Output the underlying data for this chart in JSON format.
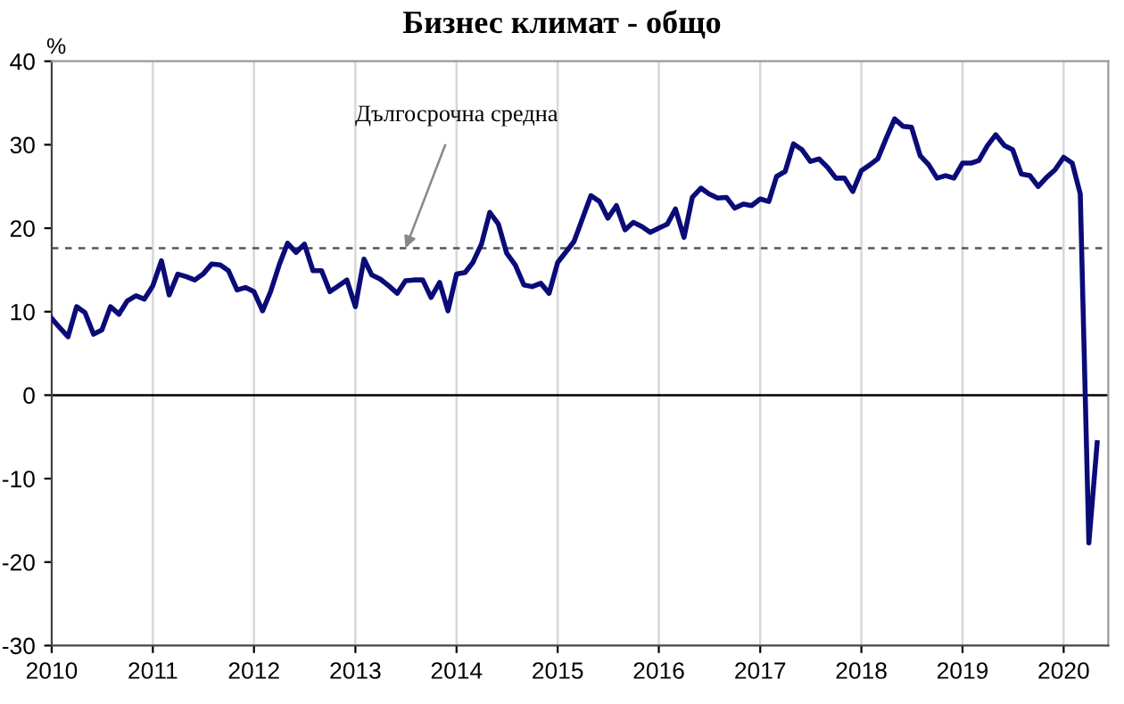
{
  "chart_data": {
    "type": "line",
    "title": "Бизнес климат - общо",
    "ylabel": "%",
    "x": [
      "2010-01",
      "2010-02",
      "2010-03",
      "2010-04",
      "2010-05",
      "2010-06",
      "2010-07",
      "2010-08",
      "2010-09",
      "2010-10",
      "2010-11",
      "2010-12",
      "2011-01",
      "2011-02",
      "2011-03",
      "2011-04",
      "2011-05",
      "2011-06",
      "2011-07",
      "2011-08",
      "2011-09",
      "2011-10",
      "2011-11",
      "2011-12",
      "2012-01",
      "2012-02",
      "2012-03",
      "2012-04",
      "2012-05",
      "2012-06",
      "2012-07",
      "2012-08",
      "2012-09",
      "2012-10",
      "2012-11",
      "2012-12",
      "2013-01",
      "2013-02",
      "2013-03",
      "2013-04",
      "2013-05",
      "2013-06",
      "2013-07",
      "2013-08",
      "2013-09",
      "2013-10",
      "2013-11",
      "2013-12",
      "2014-01",
      "2014-02",
      "2014-03",
      "2014-04",
      "2014-05",
      "2014-06",
      "2014-07",
      "2014-08",
      "2014-09",
      "2014-10",
      "2014-11",
      "2014-12",
      "2015-01",
      "2015-02",
      "2015-03",
      "2015-04",
      "2015-05",
      "2015-06",
      "2015-07",
      "2015-08",
      "2015-09",
      "2015-10",
      "2015-11",
      "2015-12",
      "2016-01",
      "2016-02",
      "2016-03",
      "2016-04",
      "2016-05",
      "2016-06",
      "2016-07",
      "2016-08",
      "2016-09",
      "2016-10",
      "2016-11",
      "2016-12",
      "2017-01",
      "2017-02",
      "2017-03",
      "2017-04",
      "2017-05",
      "2017-06",
      "2017-07",
      "2017-08",
      "2017-09",
      "2017-10",
      "2017-11",
      "2017-12",
      "2018-01",
      "2018-02",
      "2018-03",
      "2018-04",
      "2018-05",
      "2018-06",
      "2018-07",
      "2018-08",
      "2018-09",
      "2018-10",
      "2018-11",
      "2018-12",
      "2019-01",
      "2019-02",
      "2019-03",
      "2019-04",
      "2019-05",
      "2019-06",
      "2019-07",
      "2019-08",
      "2019-09",
      "2019-10",
      "2019-11",
      "2019-12",
      "2020-01",
      "2020-02",
      "2020-03",
      "2020-04",
      "2020-05"
    ],
    "series": [
      {
        "color": "#0b0b78",
        "values": [
          9.2,
          8.0,
          7.0,
          10.6,
          9.9,
          7.3,
          7.8,
          10.6,
          9.7,
          11.3,
          11.9,
          11.5,
          13.1,
          16.1,
          12.0,
          14.5,
          14.2,
          13.8,
          14.5,
          15.7,
          15.6,
          14.9,
          12.6,
          12.9,
          12.4,
          10.1,
          12.4,
          15.6,
          18.2,
          17.1,
          18.1,
          14.9,
          14.9,
          12.4,
          13.1,
          13.8,
          10.6,
          16.3,
          14.4,
          13.9,
          13.1,
          12.2,
          13.7,
          13.8,
          13.8,
          11.7,
          13.5,
          10.1,
          14.5,
          14.7,
          15.9,
          18.1,
          21.9,
          20.5,
          17.0,
          15.6,
          13.2,
          13.0,
          13.4,
          12.2,
          15.9,
          17.2,
          18.4,
          21.2,
          23.9,
          23.2,
          21.2,
          22.7,
          19.8,
          20.7,
          20.2,
          19.5,
          20.0,
          20.5,
          22.3,
          18.9,
          23.7,
          24.8,
          24.1,
          23.6,
          23.7,
          22.4,
          22.9,
          22.7,
          23.5,
          23.2,
          26.2,
          26.8,
          30.1,
          29.4,
          28.0,
          28.3,
          27.3,
          26.0,
          26.0,
          24.4,
          26.9,
          27.6,
          28.3,
          30.8,
          33.1,
          32.2,
          32.1,
          28.7,
          27.6,
          26.0,
          26.3,
          26.0,
          27.8,
          27.8,
          28.1,
          29.9,
          31.2,
          29.9,
          29.4,
          26.5,
          26.3,
          25.0,
          26.1,
          27.0,
          28.5,
          27.8,
          24.1,
          -17.7,
          -5.7
        ]
      }
    ],
    "xlim": [
      "2010-01",
      "2020-06-10"
    ],
    "xticks": [
      "2010",
      "2011",
      "2012",
      "2013",
      "2014",
      "2015",
      "2016",
      "2017",
      "2018",
      "2019",
      "2020"
    ],
    "ylim": [
      -30,
      40
    ],
    "yticks": [
      -30,
      -20,
      -10,
      0,
      10,
      20,
      30,
      40
    ],
    "grid": "x",
    "line_style": "solid",
    "marker": "none",
    "ref_lines": [
      {
        "axis": "y",
        "value": 17.6,
        "color": "#555555",
        "line_style": "dashed"
      },
      {
        "axis": "y",
        "value": 0,
        "color": "#000000",
        "line_style": "solid"
      }
    ],
    "annotations": [
      {
        "text": "Дългосрочна средна",
        "x": "2013-07",
        "y": 17.6
      }
    ]
  }
}
